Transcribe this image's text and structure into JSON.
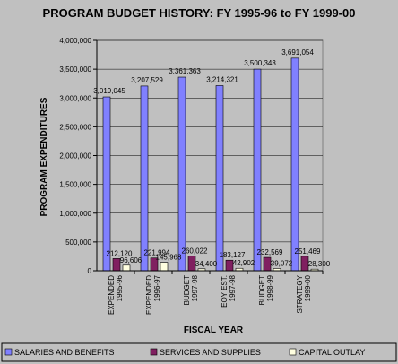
{
  "chart_data": {
    "type": "bar",
    "title": "PROGRAM BUDGET HISTORY: FY 1995-96 to FY 1999-00",
    "xlabel": "FISCAL YEAR",
    "ylabel": "PROGRAM EXPENDITURES",
    "ylim": [
      0,
      4000000
    ],
    "yticks": [
      "0",
      "500,000",
      "1,000,000",
      "1,500,000",
      "2,000,000",
      "2,500,000",
      "3,000,000",
      "3,500,000",
      "4,000,000"
    ],
    "categories": [
      [
        "EXPENDED",
        "1995-96"
      ],
      [
        "EXPENDED",
        "1996-97"
      ],
      [
        "BUDGET",
        "1997-98"
      ],
      [
        "EOY EST.",
        "1997-98"
      ],
      [
        "BUDGET",
        "1998-99"
      ],
      [
        "STRATEGY",
        "1999-00"
      ]
    ],
    "series": [
      {
        "name": "SALARIES AND BENEFITS",
        "color": "#8080ff",
        "values": [
          3019045,
          3207529,
          3361363,
          3214321,
          3500343,
          3691054
        ],
        "labels": [
          "3,019,045",
          "3,207,529",
          "3,361,363",
          "3,214,321",
          "3,500,343",
          "3,691,054"
        ]
      },
      {
        "name": "SERVICES AND SUPPLIES",
        "color": "#802060",
        "values": [
          212120,
          221994,
          260022,
          183127,
          232569,
          251469
        ],
        "labels": [
          "212,120",
          "221,994",
          "260,022",
          "183,127",
          "232,569",
          "251,469"
        ]
      },
      {
        "name": "CAPITAL OUTLAY",
        "color": "#ffffe0",
        "values": [
          96606,
          145968,
          34400,
          42902,
          39072,
          28300
        ],
        "labels": [
          "96,606",
          "145,968",
          "34,400",
          "42,902",
          "39,072",
          "28,300"
        ]
      }
    ],
    "grid": true,
    "legend": "bottom"
  }
}
